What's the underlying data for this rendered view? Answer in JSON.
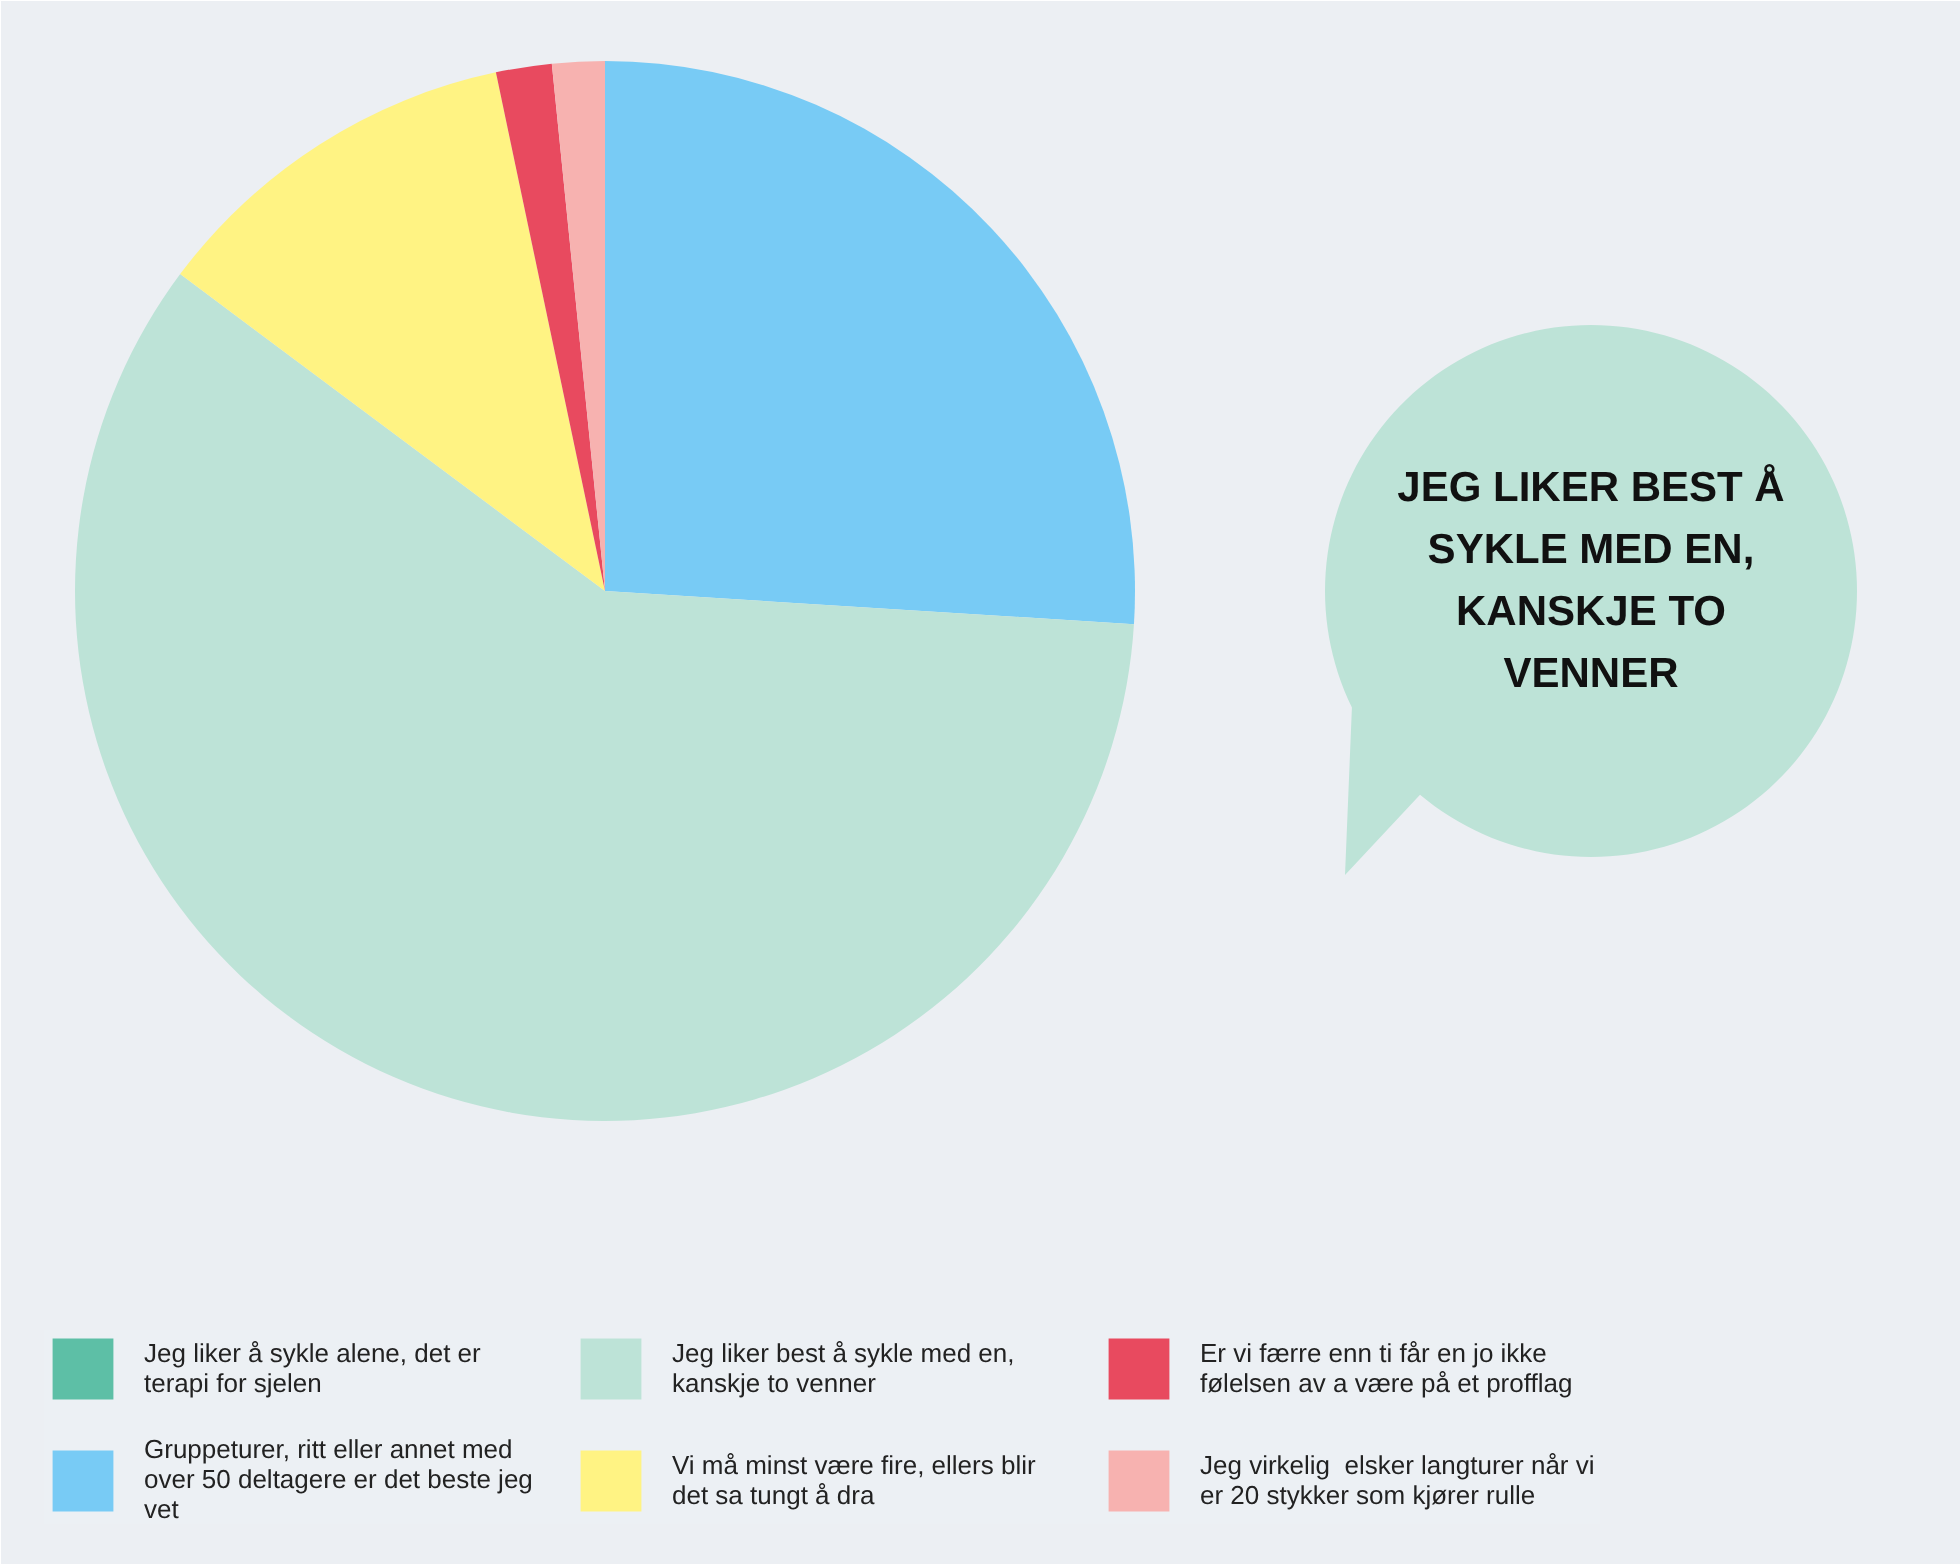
{
  "chart_data": {
    "type": "pie",
    "categories": [
      "Jeg liker å sykle alene, det er terapi for sjelen",
      "Gruppeturer, ritt eller annet med over 50 deltagere er det beste jeg vet",
      "Jeg liker best å sykle med en, kanskje to venner",
      "Vi må minst være fire, ellers blir det sa tungt å dra",
      "Er vi færre enn ti får en jo ikke følelsen av a være på et profflag",
      "Jeg virkelig  elsker langturer når vi er 20 stykker som kjører rulle"
    ],
    "values": [
      0,
      26,
      59.2,
      11.5,
      1.7,
      1.6
    ],
    "colors": [
      "#5dbfa6",
      "#78cbf5",
      "#bde3d7",
      "#fff383",
      "#e84a5f",
      "#f7b2b0"
    ],
    "annotations": [
      "JEG LIKER BEST Å SYKLE MED EN, KANSKJE TO VENNER"
    ],
    "legend": "bottom"
  }
}
